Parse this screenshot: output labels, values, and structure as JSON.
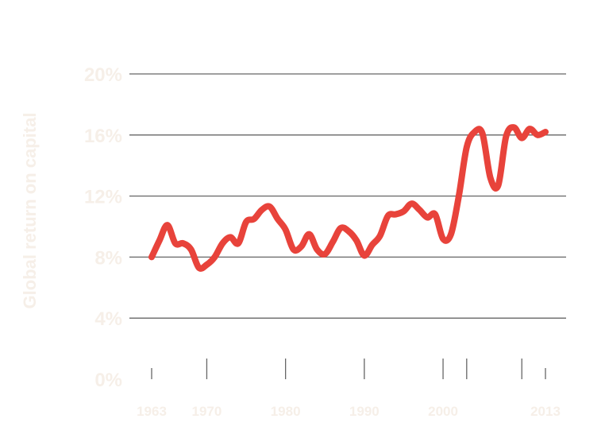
{
  "chart_data": {
    "type": "line",
    "title": "",
    "xlabel": "",
    "ylabel": "Global return on capital",
    "xlim": [
      1960,
      2016
    ],
    "ylim": [
      0,
      20
    ],
    "y_ticks": [
      0,
      4,
      8,
      12,
      16,
      20
    ],
    "y_tick_labels": [
      "0%",
      "4%",
      "8%",
      "12%",
      "16%",
      "20%"
    ],
    "x_ticks": [
      1963,
      1970,
      1980,
      1990,
      2000,
      2013
    ],
    "x_tick_labels": [
      "1963",
      "1970",
      "1980",
      "1990",
      "2000",
      "2013"
    ],
    "x_minor_ticks": [
      2003,
      2010
    ],
    "grid": true,
    "legend": "none",
    "colors": {
      "line": "#e8433b",
      "grid": "#666666",
      "labels": "#f6efe8"
    },
    "series": [
      {
        "name": "",
        "x": [
          1963,
          1964,
          1965,
          1966,
          1967,
          1968,
          1969,
          1970,
          1971,
          1972,
          1973,
          1974,
          1975,
          1976,
          1977,
          1978,
          1979,
          1980,
          1981,
          1982,
          1983,
          1984,
          1985,
          1986,
          1987,
          1988,
          1989,
          1990,
          1991,
          1992,
          1993,
          1994,
          1995,
          1996,
          1997,
          1998,
          1999,
          2000,
          2001,
          2002,
          2003,
          2004,
          2005,
          2006,
          2007,
          2008,
          2009,
          2010,
          2011,
          2012,
          2013
        ],
        "y": [
          8.0,
          9.1,
          10.1,
          8.9,
          8.9,
          8.5,
          7.3,
          7.5,
          8.0,
          8.9,
          9.3,
          8.9,
          10.3,
          10.5,
          11.1,
          11.3,
          10.5,
          9.8,
          8.5,
          8.7,
          9.5,
          8.5,
          8.2,
          9.0,
          9.9,
          9.7,
          9.1,
          8.1,
          8.8,
          9.4,
          10.7,
          10.8,
          11.0,
          11.5,
          11.1,
          10.6,
          10.8,
          9.2,
          9.5,
          12.0,
          15.2,
          16.2,
          16.1,
          13.2,
          12.7,
          15.9,
          16.5,
          15.8,
          16.4,
          16.0,
          16.2
        ]
      }
    ]
  }
}
